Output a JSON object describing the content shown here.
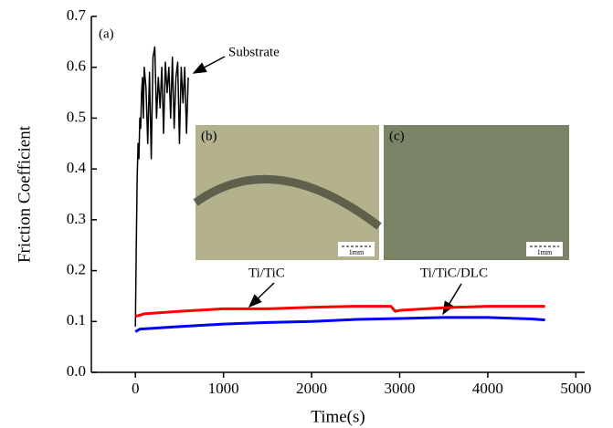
{
  "chart_data": {
    "type": "line",
    "x_label": "Time(s)",
    "y_label": "Friction Coefficient",
    "panel_label": "(a)",
    "xlim": [
      -500,
      5100
    ],
    "ylim": [
      0,
      0.7
    ],
    "xticks": [
      0,
      1000,
      2000,
      3000,
      4000,
      5000
    ],
    "yticks": [
      {
        "value": 0,
        "label": "0.0"
      },
      0.1,
      0.2,
      0.3,
      0.4,
      0.5,
      0.6,
      0.7
    ],
    "series": [
      {
        "name": "Substrate",
        "color": "#000000",
        "x": [
          0,
          10,
          20,
          30,
          40,
          50,
          60,
          70,
          80,
          90,
          100,
          120,
          140,
          160,
          180,
          200,
          220,
          240,
          260,
          280,
          300,
          320,
          340,
          360,
          380,
          400,
          420,
          440,
          460,
          480,
          500,
          520,
          540,
          560,
          580,
          600
        ],
        "values": [
          0.09,
          0.25,
          0.38,
          0.45,
          0.42,
          0.5,
          0.48,
          0.55,
          0.58,
          0.5,
          0.6,
          0.56,
          0.45,
          0.59,
          0.42,
          0.62,
          0.64,
          0.5,
          0.58,
          0.52,
          0.6,
          0.47,
          0.61,
          0.55,
          0.6,
          0.5,
          0.62,
          0.48,
          0.58,
          0.61,
          0.45,
          0.6,
          0.53,
          0.6,
          0.47,
          0.58
        ]
      },
      {
        "name": "Ti/TiC",
        "color": "#ff0000",
        "x": [
          0,
          100,
          500,
          1000,
          1500,
          2000,
          2500,
          2900,
          2950,
          3000,
          3500,
          4000,
          4500,
          4650
        ],
        "values": [
          0.11,
          0.115,
          0.12,
          0.125,
          0.125,
          0.128,
          0.13,
          0.13,
          0.12,
          0.122,
          0.127,
          0.13,
          0.13,
          0.13
        ]
      },
      {
        "name": "Ti/TiC/DLC",
        "color": "#0000ff",
        "x": [
          0,
          50,
          500,
          1000,
          1500,
          2000,
          2500,
          3000,
          3500,
          4000,
          4500,
          4650
        ],
        "values": [
          0.08,
          0.085,
          0.09,
          0.095,
          0.098,
          0.1,
          0.104,
          0.106,
          0.108,
          0.108,
          0.105,
          0.103
        ]
      }
    ],
    "insets": [
      {
        "label": "(b)",
        "scale": "1mm"
      },
      {
        "label": "(c)",
        "scale": "1mm"
      }
    ]
  }
}
